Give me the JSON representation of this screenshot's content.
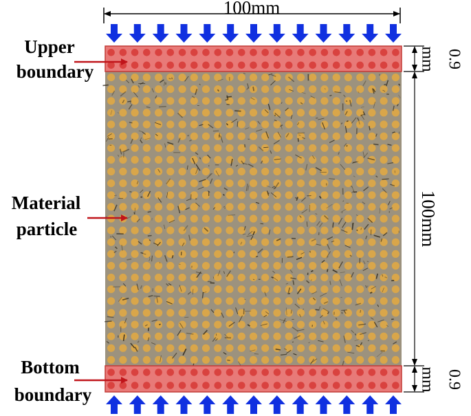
{
  "labels": {
    "upper_boundary": [
      "Upper",
      "boundary"
    ],
    "material_particle": [
      "Material",
      "particle"
    ],
    "bottom_boundary": [
      "Bottom",
      "boundary"
    ]
  },
  "dimensions": {
    "width": "100mm",
    "height": "100mm",
    "boundary_thickness": "0.9",
    "boundary_unit": "mm"
  },
  "colors": {
    "boundary_fill": "#e87a78",
    "boundary_particle": "#d9423f",
    "material_particle": "#d9a64a",
    "specimen_background": "#9c927e",
    "load_arrow": "#1030e0",
    "label_arrow": "#c0141a"
  },
  "grid": {
    "columns": 25,
    "rows": 25,
    "boundary_rows": 2
  }
}
